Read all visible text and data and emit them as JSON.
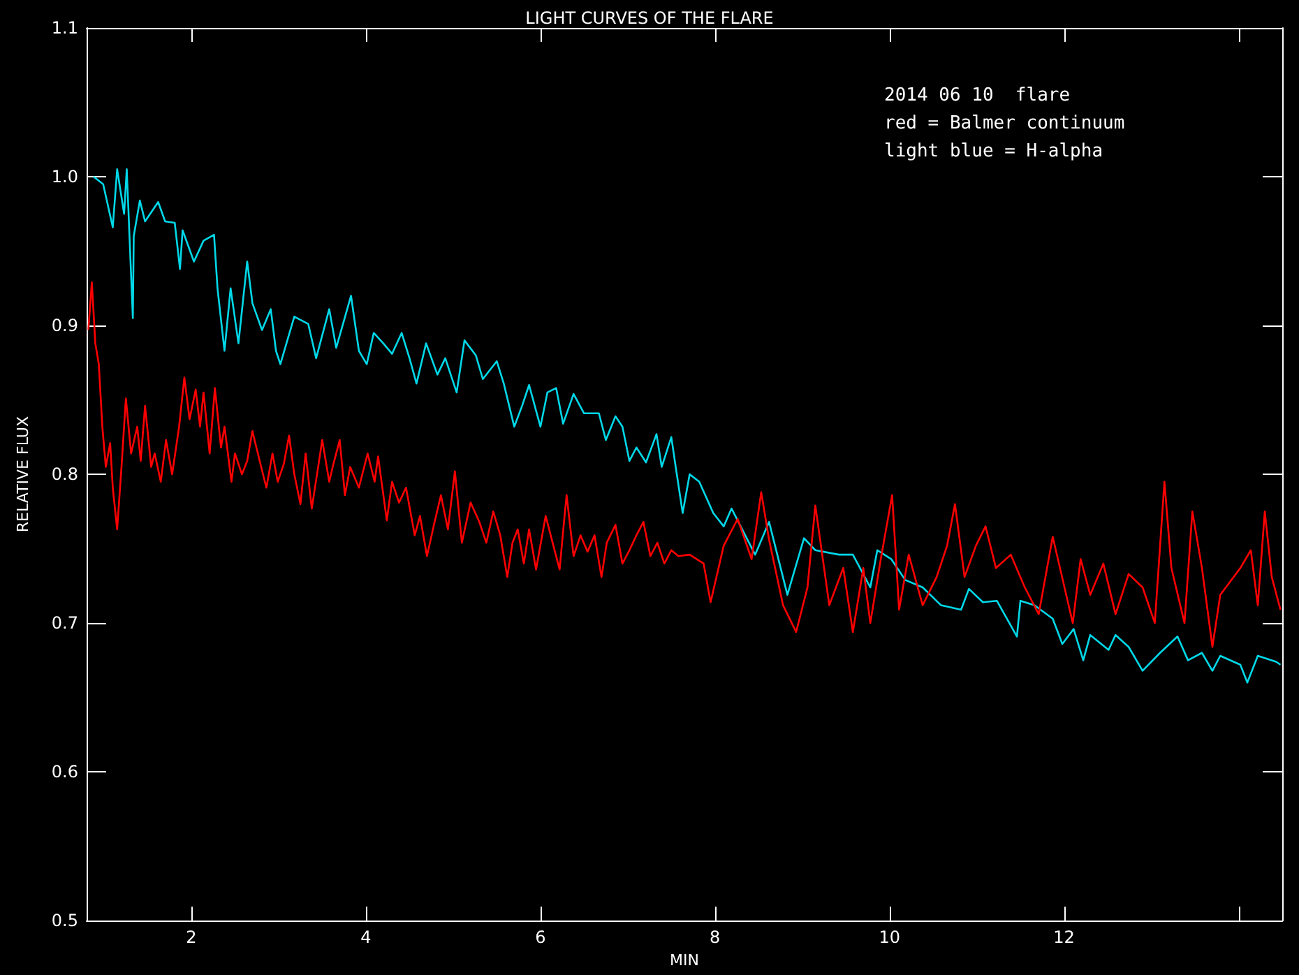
{
  "chart_data": {
    "type": "line",
    "title": "LIGHT CURVES OF THE FLARE",
    "xlabel": "MIN",
    "ylabel": "RELATIVE FLUX",
    "annotations": [
      "2014 06 10  flare",
      "red = Balmer continuum",
      "light blue = H-alpha"
    ],
    "xlim": [
      0.8,
      14.5
    ],
    "ylim": [
      0.5,
      1.1
    ],
    "xticks": [
      2,
      4,
      6,
      8,
      10,
      12,
      {
        "value": 14,
        "label": null
      }
    ],
    "yticks": [
      0.5,
      0.6,
      0.7,
      0.8,
      0.9,
      {
        "value": 1.0,
        "label": "1.0"
      },
      1.1
    ],
    "grid": false,
    "marker": "none",
    "line_style": "solid",
    "series": [
      {
        "color": "#00d8e8",
        "x": [
          0.88,
          0.99,
          1.1,
          1.15,
          1.23,
          1.26,
          1.33,
          1.34,
          1.41,
          1.47,
          1.62,
          1.7,
          1.81,
          1.87,
          1.9,
          2.03,
          2.14,
          2.26,
          2.3,
          2.38,
          2.45,
          2.54,
          2.64,
          2.7,
          2.81,
          2.91,
          2.97,
          3.02,
          3.18,
          3.34,
          3.43,
          3.58,
          3.66,
          3.83,
          3.92,
          4.01,
          4.09,
          4.2,
          4.3,
          4.41,
          4.5,
          4.58,
          4.69,
          4.82,
          4.91,
          5.04,
          5.13,
          5.26,
          5.34,
          5.5,
          5.58,
          5.7,
          5.79,
          5.87,
          6.0,
          6.08,
          6.18,
          6.26,
          6.38,
          6.5,
          6.67,
          6.75,
          6.86,
          6.94,
          7.02,
          7.1,
          7.21,
          7.33,
          7.39,
          7.5,
          7.55,
          7.63,
          7.71,
          7.82,
          7.98,
          8.1,
          8.19,
          8.46,
          8.62,
          8.83,
          9.02,
          9.15,
          9.42,
          9.58,
          9.78,
          9.86,
          10.02,
          10.18,
          10.38,
          10.59,
          10.82,
          10.91,
          11.07,
          11.23,
          11.46,
          11.5,
          11.66,
          11.87,
          11.98,
          12.11,
          12.22,
          12.3,
          12.51,
          12.59,
          12.74,
          12.9,
          13.1,
          13.3,
          13.42,
          13.58,
          13.7,
          13.79,
          14.02,
          14.1,
          14.22,
          14.43,
          14.48
        ],
        "values": [
          1.0,
          0.995,
          0.966,
          1.005,
          0.975,
          1.005,
          0.905,
          0.96,
          0.984,
          0.97,
          0.983,
          0.97,
          0.969,
          0.938,
          0.964,
          0.943,
          0.957,
          0.961,
          0.925,
          0.883,
          0.925,
          0.888,
          0.943,
          0.915,
          0.897,
          0.911,
          0.883,
          0.874,
          0.906,
          0.901,
          0.878,
          0.911,
          0.885,
          0.92,
          0.883,
          0.874,
          0.895,
          0.888,
          0.881,
          0.895,
          0.878,
          0.861,
          0.888,
          0.867,
          0.878,
          0.855,
          0.89,
          0.88,
          0.864,
          0.876,
          0.861,
          0.832,
          0.846,
          0.86,
          0.832,
          0.855,
          0.858,
          0.834,
          0.854,
          0.841,
          0.841,
          0.823,
          0.839,
          0.832,
          0.809,
          0.818,
          0.808,
          0.827,
          0.805,
          0.825,
          0.805,
          0.774,
          0.8,
          0.795,
          0.774,
          0.765,
          0.777,
          0.746,
          0.768,
          0.719,
          0.757,
          0.749,
          0.746,
          0.746,
          0.724,
          0.749,
          0.743,
          0.729,
          0.724,
          0.712,
          0.709,
          0.723,
          0.714,
          0.715,
          0.691,
          0.715,
          0.712,
          0.703,
          0.686,
          0.696,
          0.675,
          0.692,
          0.682,
          0.692,
          0.684,
          0.668,
          0.68,
          0.691,
          0.675,
          0.68,
          0.668,
          0.678,
          0.672,
          0.66,
          0.678,
          0.674,
          0.672
        ]
      },
      {
        "color": "#ff0000",
        "x": [
          0.82,
          0.86,
          0.9,
          0.94,
          0.98,
          1.02,
          1.07,
          1.1,
          1.15,
          1.2,
          1.25,
          1.31,
          1.38,
          1.42,
          1.47,
          1.54,
          1.58,
          1.65,
          1.71,
          1.78,
          1.86,
          1.92,
          1.98,
          2.05,
          2.1,
          2.14,
          2.21,
          2.27,
          2.34,
          2.38,
          2.46,
          2.5,
          2.58,
          2.64,
          2.7,
          2.8,
          2.86,
          2.93,
          2.99,
          3.06,
          3.12,
          3.18,
          3.25,
          3.31,
          3.38,
          3.44,
          3.5,
          3.58,
          3.62,
          3.7,
          3.76,
          3.82,
          3.92,
          4.02,
          4.1,
          4.14,
          4.24,
          4.3,
          4.38,
          4.46,
          4.56,
          4.62,
          4.7,
          4.78,
          4.86,
          4.94,
          5.02,
          5.1,
          5.2,
          5.3,
          5.38,
          5.46,
          5.54,
          5.62,
          5.68,
          5.74,
          5.81,
          5.87,
          5.95,
          6.06,
          6.14,
          6.22,
          6.27,
          6.3,
          6.38,
          6.46,
          6.54,
          6.62,
          6.7,
          6.76,
          6.86,
          6.94,
          7.02,
          7.1,
          7.18,
          7.26,
          7.34,
          7.42,
          7.5,
          7.58,
          7.71,
          7.87,
          7.95,
          8.1,
          8.26,
          8.42,
          8.53,
          8.62,
          8.78,
          8.93,
          9.06,
          9.15,
          9.31,
          9.47,
          9.58,
          9.7,
          9.78,
          9.9,
          10.03,
          10.11,
          10.22,
          10.38,
          10.54,
          10.66,
          10.75,
          10.86,
          10.99,
          11.1,
          11.22,
          11.39,
          11.55,
          11.71,
          11.87,
          12.1,
          12.19,
          12.3,
          12.45,
          12.59,
          12.74,
          12.9,
          13.04,
          13.15,
          13.23,
          13.38,
          13.47,
          13.58,
          13.7,
          13.79,
          14.02,
          14.14,
          14.22,
          14.3,
          14.38,
          14.48
        ],
        "values": [
          0.897,
          0.929,
          0.888,
          0.874,
          0.832,
          0.805,
          0.821,
          0.791,
          0.763,
          0.805,
          0.851,
          0.814,
          0.832,
          0.809,
          0.846,
          0.805,
          0.814,
          0.795,
          0.823,
          0.8,
          0.832,
          0.865,
          0.837,
          0.857,
          0.832,
          0.855,
          0.814,
          0.858,
          0.818,
          0.832,
          0.795,
          0.814,
          0.8,
          0.809,
          0.829,
          0.805,
          0.791,
          0.814,
          0.795,
          0.807,
          0.826,
          0.8,
          0.78,
          0.814,
          0.777,
          0.8,
          0.823,
          0.795,
          0.805,
          0.823,
          0.786,
          0.805,
          0.791,
          0.814,
          0.795,
          0.812,
          0.769,
          0.795,
          0.781,
          0.791,
          0.759,
          0.772,
          0.745,
          0.766,
          0.786,
          0.763,
          0.802,
          0.754,
          0.781,
          0.768,
          0.754,
          0.775,
          0.759,
          0.731,
          0.754,
          0.763,
          0.74,
          0.763,
          0.736,
          0.772,
          0.754,
          0.736,
          0.768,
          0.786,
          0.745,
          0.759,
          0.748,
          0.759,
          0.731,
          0.754,
          0.766,
          0.74,
          0.749,
          0.759,
          0.768,
          0.745,
          0.754,
          0.74,
          0.749,
          0.745,
          0.746,
          0.74,
          0.714,
          0.752,
          0.77,
          0.743,
          0.788,
          0.756,
          0.712,
          0.694,
          0.724,
          0.779,
          0.712,
          0.737,
          0.694,
          0.737,
          0.7,
          0.743,
          0.786,
          0.709,
          0.746,
          0.712,
          0.731,
          0.752,
          0.78,
          0.731,
          0.752,
          0.765,
          0.737,
          0.746,
          0.724,
          0.706,
          0.758,
          0.7,
          0.743,
          0.719,
          0.74,
          0.706,
          0.733,
          0.724,
          0.7,
          0.795,
          0.737,
          0.7,
          0.775,
          0.737,
          0.684,
          0.719,
          0.737,
          0.749,
          0.712,
          0.775,
          0.731,
          0.709
        ]
      }
    ]
  }
}
